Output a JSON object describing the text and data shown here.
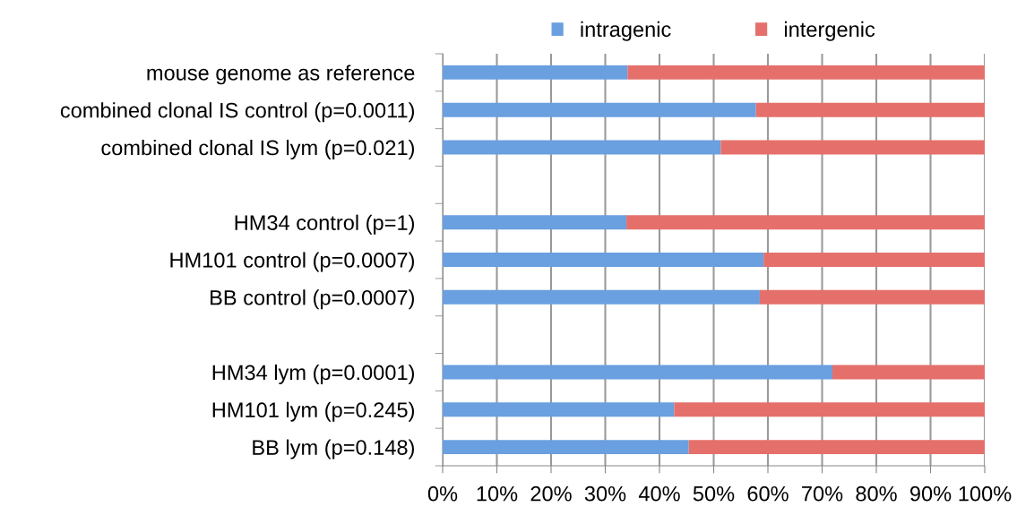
{
  "chart_data": {
    "type": "bar",
    "orientation": "horizontal",
    "stacked": true,
    "categories": [
      "mouse genome as reference",
      "combined clonal IS control (p=0.0011)",
      "combined clonal IS lym (p=0.021)",
      null,
      "HM34 control (p=1)",
      "HM101 control (p=0.0007)",
      "BB control (p=0.0007)",
      null,
      "HM34 lym (p=0.0001)",
      "HM101 lym (p=0.245)",
      "BB lym (p=0.148)"
    ],
    "series": [
      {
        "name": "intragenic",
        "color": "#6a9fe0",
        "values": [
          34.1,
          57.8,
          51.3,
          null,
          33.9,
          59.2,
          58.5,
          null,
          71.9,
          42.7,
          45.4
        ]
      },
      {
        "name": "intergenic",
        "color": "#e5706b",
        "values": [
          65.9,
          42.2,
          48.7,
          null,
          66.1,
          40.8,
          41.5,
          null,
          28.1,
          57.3,
          54.6
        ]
      }
    ],
    "xlim": [
      0,
      100
    ],
    "xticks": [
      {
        "value": 0,
        "label": "0%"
      },
      {
        "value": 10,
        "label": "10%"
      },
      {
        "value": 20,
        "label": "20%"
      },
      {
        "value": 30,
        "label": "30%"
      },
      {
        "value": 40,
        "label": "40%"
      },
      {
        "value": 50,
        "label": "50%"
      },
      {
        "value": 60,
        "label": "60%"
      },
      {
        "value": 70,
        "label": "70%"
      },
      {
        "value": 80,
        "label": "80%"
      },
      {
        "value": 90,
        "label": "90%"
      },
      {
        "value": 100,
        "label": "100%"
      }
    ],
    "grid": "x",
    "legend": "top"
  }
}
